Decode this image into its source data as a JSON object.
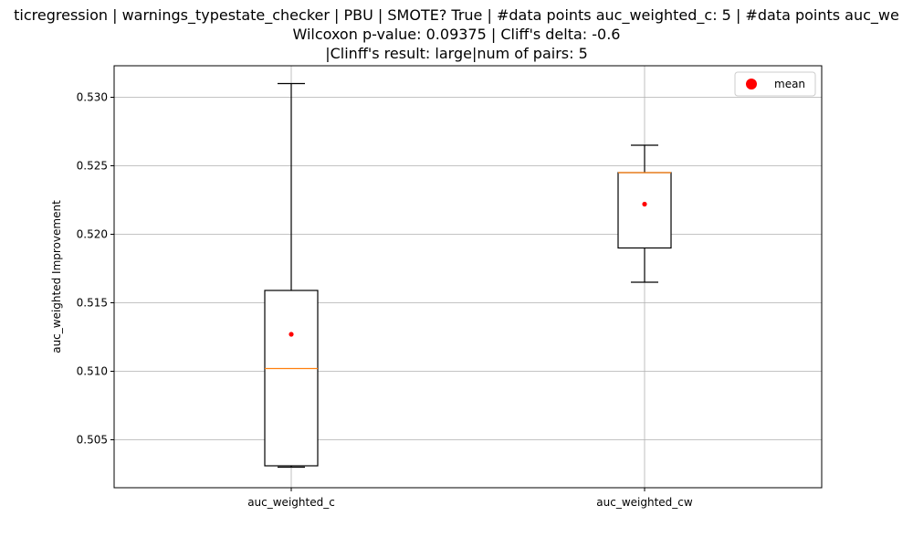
{
  "chart_data": {
    "type": "box",
    "title_lines": [
      "ticregression | warnings_typestate_checker | PBU | SMOTE? True | #data points auc_weighted_c: 5 | #data points auc_we",
      "Wilcoxon p-value: 0.09375 | Cliff's delta: -0.6",
      "|Clinff's result: large|num of pairs: 5"
    ],
    "ylabel": "auc_weighted Improvement",
    "xlabel": "",
    "ylim": [
      0.5015,
      0.5323
    ],
    "yticks": [
      0.505,
      0.51,
      0.515,
      0.52,
      0.525,
      0.53
    ],
    "ytick_labels": [
      "0.505",
      "0.510",
      "0.515",
      "0.520",
      "0.525",
      "0.530"
    ],
    "grid": true,
    "legend": {
      "position": "top-right",
      "entries": [
        "mean"
      ]
    },
    "categories": [
      "auc_weighted_c",
      "auc_weighted_cw"
    ],
    "boxes": [
      {
        "category": "auc_weighted_c",
        "whisker_low": 0.503,
        "q1": 0.5031,
        "median": 0.5102,
        "q3": 0.5159,
        "whisker_high": 0.531,
        "mean": 0.5127
      },
      {
        "category": "auc_weighted_cw",
        "whisker_low": 0.5165,
        "q1": 0.519,
        "median": 0.5245,
        "q3": 0.5245,
        "whisker_high": 0.5265,
        "mean": 0.5222
      }
    ],
    "colors": {
      "box": "#000000",
      "median": "#ff7f0e",
      "mean": "#ff0000",
      "grid": "#b0b0b0"
    }
  }
}
